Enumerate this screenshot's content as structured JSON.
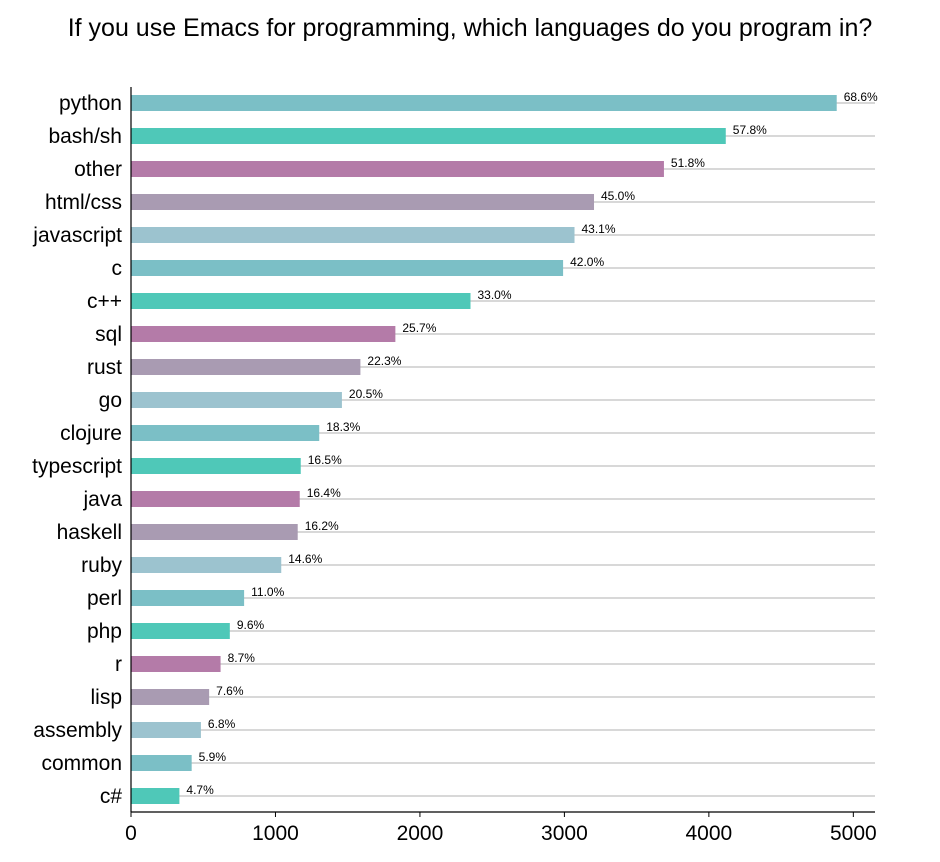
{
  "chart_data": {
    "type": "bar",
    "orientation": "horizontal",
    "title": "If you use Emacs for programming, which languages do you program in?",
    "xlabel": "",
    "ylabel": "",
    "xlim": [
      0,
      5150
    ],
    "xticks": [
      "0",
      "1000",
      "2000",
      "3000",
      "4000",
      "5000"
    ],
    "grid": "horizontal lines at each category",
    "categories": [
      "python",
      "bash/sh",
      "other",
      "html/css",
      "javascript",
      "c",
      "c++",
      "sql",
      "rust",
      "go",
      "clojure",
      "typescript",
      "java",
      "haskell",
      "ruby",
      "perl",
      "php",
      "r",
      "lisp",
      "assembly",
      "common",
      "c#"
    ],
    "values": [
      4885,
      4117,
      3689,
      3205,
      3070,
      2991,
      2350,
      1830,
      1588,
      1460,
      1303,
      1175,
      1168,
      1154,
      1040,
      783,
      684,
      620,
      541,
      484,
      420,
      335
    ],
    "labels": [
      "68.6%",
      "57.8%",
      "51.8%",
      "45.0%",
      "43.1%",
      "42.0%",
      "33.0%",
      "25.7%",
      "22.3%",
      "20.5%",
      "18.3%",
      "16.5%",
      "16.4%",
      "16.2%",
      "14.6%",
      "11.0%",
      "9.6%",
      "8.7%",
      "7.6%",
      "6.8%",
      "5.9%",
      "4.7%"
    ],
    "colors": [
      "#7bbfc6",
      "#4fc8b8",
      "#b47ba8",
      "#a99bb2",
      "#9cc3cf"
    ]
  }
}
